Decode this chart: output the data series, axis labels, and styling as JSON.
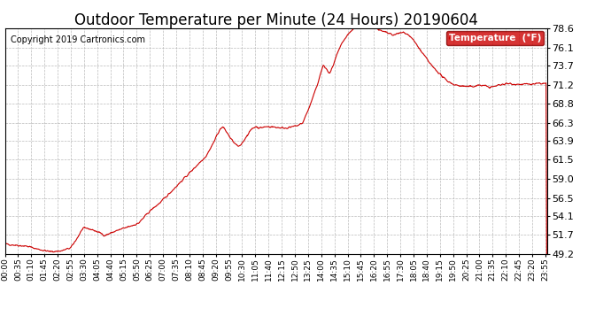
{
  "title": "Outdoor Temperature per Minute (24 Hours) 20190604",
  "copyright_text": "Copyright 2019 Cartronics.com",
  "legend_label": "Temperature  (°F)",
  "legend_bg": "#cc0000",
  "legend_text_color": "#ffffff",
  "line_color": "#cc0000",
  "background_color": "#ffffff",
  "plot_bg_color": "#ffffff",
  "grid_color": "#aaaaaa",
  "ylim_min": 49.2,
  "ylim_max": 78.6,
  "yticks": [
    49.2,
    51.7,
    54.1,
    56.5,
    59.0,
    61.5,
    63.9,
    66.3,
    68.8,
    71.2,
    73.7,
    76.1,
    78.6
  ],
  "title_fontsize": 12,
  "tick_fontsize": 6.5,
  "ytick_fontsize": 8,
  "copyright_fontsize": 7,
  "x_tick_labels": [
    "00:00",
    "00:35",
    "01:10",
    "01:45",
    "02:20",
    "02:55",
    "03:30",
    "04:05",
    "04:40",
    "05:15",
    "05:50",
    "06:25",
    "07:00",
    "07:35",
    "08:10",
    "08:45",
    "09:20",
    "09:55",
    "10:30",
    "11:05",
    "11:40",
    "12:15",
    "12:50",
    "13:25",
    "14:00",
    "14:35",
    "15:10",
    "15:45",
    "16:20",
    "16:55",
    "17:30",
    "18:05",
    "18:40",
    "19:15",
    "19:50",
    "20:25",
    "21:00",
    "21:35",
    "22:10",
    "22:45",
    "23:20",
    "23:55"
  ],
  "keypoints": [
    [
      0,
      50.5
    ],
    [
      60,
      50.2
    ],
    [
      90,
      49.8
    ],
    [
      120,
      49.5
    ],
    [
      150,
      49.6
    ],
    [
      175,
      50.0
    ],
    [
      195,
      51.5
    ],
    [
      205,
      52.4
    ],
    [
      215,
      52.6
    ],
    [
      235,
      52.3
    ],
    [
      255,
      51.9
    ],
    [
      265,
      51.6
    ],
    [
      275,
      51.8
    ],
    [
      295,
      52.2
    ],
    [
      320,
      52.6
    ],
    [
      355,
      53.2
    ],
    [
      385,
      54.8
    ],
    [
      415,
      56.0
    ],
    [
      445,
      57.5
    ],
    [
      475,
      59.0
    ],
    [
      505,
      60.5
    ],
    [
      535,
      62.0
    ],
    [
      555,
      63.8
    ],
    [
      568,
      65.2
    ],
    [
      578,
      65.8
    ],
    [
      590,
      65.0
    ],
    [
      600,
      64.2
    ],
    [
      612,
      63.5
    ],
    [
      622,
      63.1
    ],
    [
      632,
      63.8
    ],
    [
      645,
      64.8
    ],
    [
      658,
      65.6
    ],
    [
      668,
      65.8
    ],
    [
      675,
      65.6
    ],
    [
      685,
      65.7
    ],
    [
      700,
      65.8
    ],
    [
      720,
      65.7
    ],
    [
      740,
      65.6
    ],
    [
      760,
      65.7
    ],
    [
      775,
      65.9
    ],
    [
      790,
      66.2
    ],
    [
      810,
      68.5
    ],
    [
      828,
      71.0
    ],
    [
      845,
      73.8
    ],
    [
      855,
      73.2
    ],
    [
      862,
      72.6
    ],
    [
      872,
      73.8
    ],
    [
      882,
      75.2
    ],
    [
      897,
      76.8
    ],
    [
      912,
      77.8
    ],
    [
      930,
      78.8
    ],
    [
      945,
      79.1
    ],
    [
      960,
      78.9
    ],
    [
      972,
      79.2
    ],
    [
      985,
      78.7
    ],
    [
      1000,
      78.2
    ],
    [
      1015,
      78.0
    ],
    [
      1030,
      77.7
    ],
    [
      1045,
      77.9
    ],
    [
      1060,
      78.1
    ],
    [
      1075,
      77.6
    ],
    [
      1090,
      76.7
    ],
    [
      1105,
      75.6
    ],
    [
      1120,
      74.6
    ],
    [
      1135,
      73.6
    ],
    [
      1150,
      72.9
    ],
    [
      1165,
      72.1
    ],
    [
      1180,
      71.6
    ],
    [
      1195,
      71.2
    ],
    [
      1210,
      71.1
    ],
    [
      1225,
      71.0
    ],
    [
      1240,
      71.0
    ],
    [
      1260,
      71.2
    ],
    [
      1275,
      71.1
    ],
    [
      1290,
      70.9
    ],
    [
      1305,
      71.1
    ],
    [
      1320,
      71.3
    ],
    [
      1340,
      71.4
    ],
    [
      1360,
      71.3
    ],
    [
      1380,
      71.3
    ],
    [
      1400,
      71.3
    ],
    [
      1420,
      71.4
    ],
    [
      1439,
      71.4
    ]
  ]
}
